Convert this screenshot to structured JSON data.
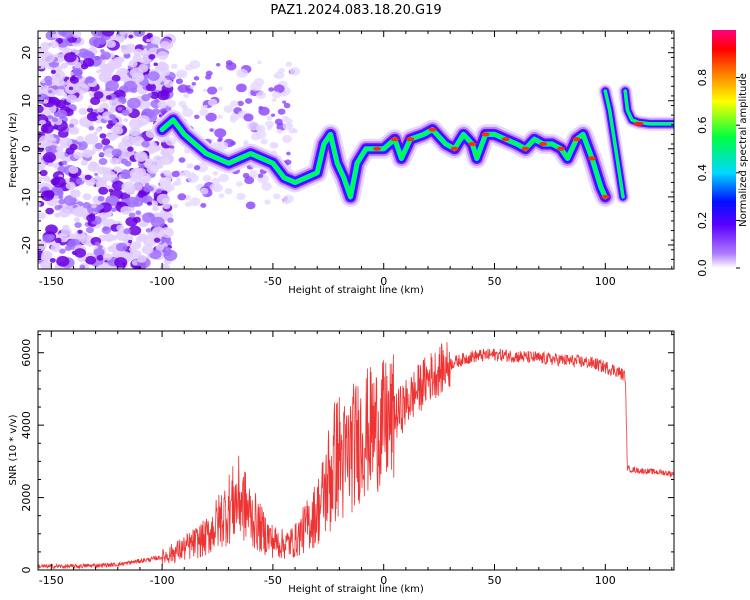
{
  "title": "PAZ1.2024.083.18.20.G19",
  "chart_data": [
    {
      "type": "heatmap",
      "xlabel": "Height of straight line (km)",
      "ylabel": "Frequency (Hz)",
      "xlim": [
        -156,
        131
      ],
      "ylim": [
        -25,
        24.5
      ],
      "xticks": [
        -150,
        -100,
        -50,
        0,
        50,
        100
      ],
      "yticks": [
        20,
        10,
        0,
        -10,
        -20
      ],
      "grid": false,
      "colorbar": {
        "label": "Normalized spectral amplitude",
        "range": [
          0,
          1
        ],
        "ticks": [
          0.0,
          0.2,
          0.4,
          0.6,
          0.8
        ],
        "tick_labels": [
          "0.0",
          "0.2",
          "0.4",
          "0.6",
          "0.8"
        ],
        "colormap": [
          "#ffffff",
          "#7a00ff",
          "#0000ff",
          "#00d8ff",
          "#00ff40",
          "#ffff00",
          "#ff8000",
          "#ff0000",
          "#ff0080"
        ]
      },
      "ridge": [
        {
          "x": -100,
          "y": 4
        },
        {
          "x": -95,
          "y": 6
        },
        {
          "x": -90,
          "y": 3
        },
        {
          "x": -85,
          "y": 1
        },
        {
          "x": -80,
          "y": -1
        },
        {
          "x": -75,
          "y": -2
        },
        {
          "x": -70,
          "y": -3
        },
        {
          "x": -65,
          "y": -2
        },
        {
          "x": -60,
          "y": -1
        },
        {
          "x": -55,
          "y": -2
        },
        {
          "x": -50,
          "y": -3
        },
        {
          "x": -45,
          "y": -6
        },
        {
          "x": -40,
          "y": -7
        },
        {
          "x": -35,
          "y": -6
        },
        {
          "x": -30,
          "y": -5
        },
        {
          "x": -27,
          "y": 1
        },
        {
          "x": -24,
          "y": 3
        },
        {
          "x": -21,
          "y": -3
        },
        {
          "x": -18,
          "y": -6
        },
        {
          "x": -15,
          "y": -10
        },
        {
          "x": -12,
          "y": -3
        },
        {
          "x": -8,
          "y": 0
        },
        {
          "x": -3,
          "y": 0
        },
        {
          "x": 0,
          "y": 0
        },
        {
          "x": 5,
          "y": 2
        },
        {
          "x": 8,
          "y": -2
        },
        {
          "x": 12,
          "y": 2
        },
        {
          "x": 18,
          "y": 3
        },
        {
          "x": 22,
          "y": 4
        },
        {
          "x": 28,
          "y": 1
        },
        {
          "x": 32,
          "y": 0
        },
        {
          "x": 36,
          "y": 3
        },
        {
          "x": 40,
          "y": 1
        },
        {
          "x": 42,
          "y": -2
        },
        {
          "x": 46,
          "y": 3
        },
        {
          "x": 50,
          "y": 3
        },
        {
          "x": 55,
          "y": 2
        },
        {
          "x": 60,
          "y": 1
        },
        {
          "x": 64,
          "y": 0
        },
        {
          "x": 68,
          "y": 2
        },
        {
          "x": 72,
          "y": 1
        },
        {
          "x": 76,
          "y": 1
        },
        {
          "x": 80,
          "y": 0
        },
        {
          "x": 83,
          "y": -2
        },
        {
          "x": 87,
          "y": 2
        },
        {
          "x": 90,
          "y": 3
        },
        {
          "x": 94,
          "y": -2
        },
        {
          "x": 98,
          "y": -8
        },
        {
          "x": 100,
          "y": -10
        }
      ],
      "high_branch": [
        {
          "x": 100,
          "y": 12
        },
        {
          "x": 102,
          "y": 8
        },
        {
          "x": 104,
          "y": 2
        },
        {
          "x": 106,
          "y": -4
        },
        {
          "x": 108,
          "y": -10
        }
      ],
      "tail": [
        {
          "x": 109,
          "y": 12
        },
        {
          "x": 110,
          "y": 8
        },
        {
          "x": 112,
          "y": 6
        },
        {
          "x": 115,
          "y": 5.5
        },
        {
          "x": 120,
          "y": 5.2
        },
        {
          "x": 125,
          "y": 5.2
        },
        {
          "x": 131,
          "y": 5.2
        }
      ]
    },
    {
      "type": "line",
      "xlabel": "Height of straight line (km)",
      "ylabel": "SNR (10 * v/v)",
      "xlim": [
        -156,
        131
      ],
      "ylim": [
        0,
        6600
      ],
      "xticks": [
        -150,
        -100,
        -50,
        0,
        50,
        100
      ],
      "yticks": [
        0,
        2000,
        4000,
        6000
      ],
      "grid": false,
      "series": [
        {
          "color": "#ee3333",
          "x": [
            -156,
            -140,
            -120,
            -110,
            -100,
            -90,
            -80,
            -75,
            -70,
            -65,
            -60,
            -55,
            -50,
            -45,
            -40,
            -35,
            -30,
            -25,
            -22,
            -20,
            -18,
            -15,
            -10,
            -5,
            0,
            5,
            10,
            20,
            30,
            40,
            50,
            60,
            70,
            80,
            90,
            95,
            100,
            105,
            109,
            110,
            111,
            115,
            120,
            125,
            131
          ],
          "y": [
            100,
            100,
            150,
            250,
            350,
            600,
            900,
            1300,
            1700,
            2000,
            1500,
            1100,
            800,
            700,
            800,
            1200,
            1600,
            2400,
            3000,
            3200,
            2900,
            3300,
            3700,
            3900,
            4000,
            4200,
            4600,
            5300,
            5700,
            5900,
            5950,
            5900,
            5850,
            5800,
            5750,
            5700,
            5600,
            5500,
            5350,
            2800,
            2780,
            2750,
            2720,
            2700,
            2650
          ]
        }
      ]
    }
  ]
}
